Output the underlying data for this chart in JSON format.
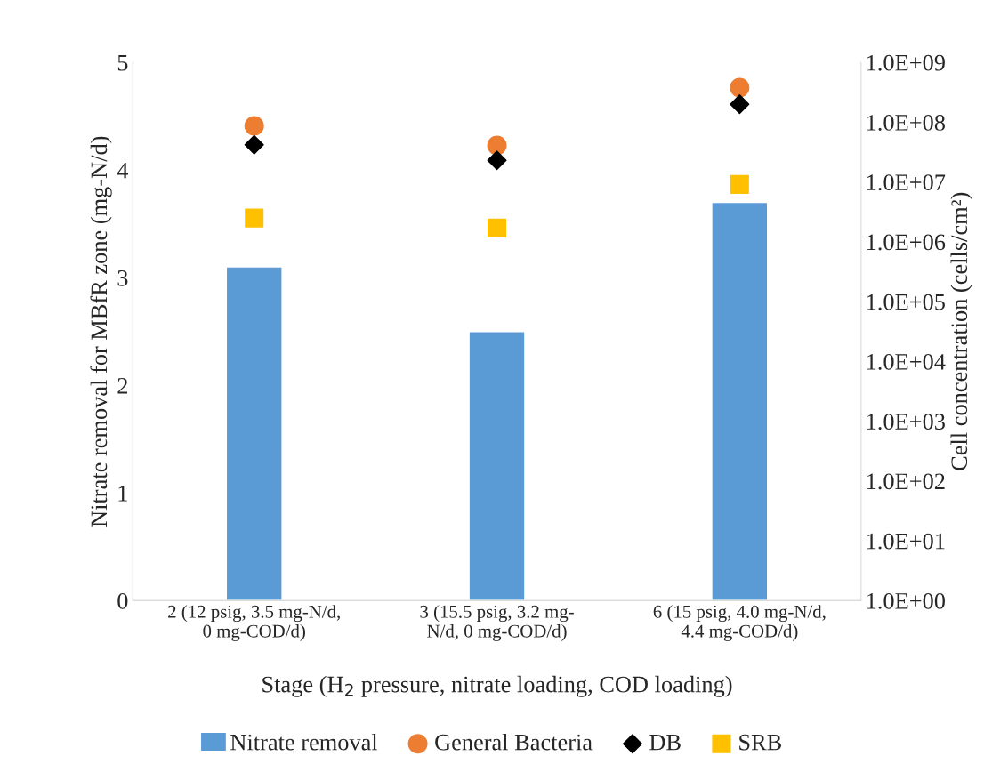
{
  "chart_data": {
    "type": "bar",
    "xlabel": "Stage (H$_{2}$ pressure, nitrate loading, COD loading)",
    "ylabel": "Nitrate removal for MBfR zone (mg-N/d)",
    "y2label": "Cell concentration (cells/cm²)",
    "categories": [
      "2 (12 psig, 3.5 mg-N/d,\n0 mg-COD/d)",
      "3 (15.5 psig, 3.2 mg-\nN/d, 0 mg-COD/d)",
      "6 (15 psig, 4.0 mg-N/d,\n4.4 mg-COD/d)"
    ],
    "series": [
      {
        "name": "Nitrate removal",
        "color": "#5b9bd5",
        "values": [
          3.1,
          2.5,
          3.7
        ]
      },
      {
        "name": "General Bacteria",
        "type": "scatter",
        "axis": "y2",
        "marker": "circle",
        "color": "#ed7d31",
        "values": [
          87000000,
          41000000,
          380000000
        ]
      },
      {
        "name": "DB",
        "type": "scatter",
        "axis": "y2",
        "marker": "diamond",
        "color": "#000000",
        "values": [
          42000000,
          23000000,
          200000000
        ]
      },
      {
        "name": "SRB",
        "type": "scatter",
        "axis": "y2",
        "marker": "square",
        "color": "#ffc000",
        "values": [
          2500000,
          1700000,
          9100000
        ]
      }
    ],
    "ylim": [
      0,
      5
    ],
    "yticks": [
      0,
      1,
      2,
      3,
      4,
      5
    ],
    "log": "y2",
    "y2lim": [
      1,
      1000000000
    ],
    "y2ticks": [
      {
        "value": 1,
        "label": "1.0E+00"
      },
      {
        "value": 10,
        "label": "1.0E+01"
      },
      {
        "value": 100,
        "label": "1.0E+02"
      },
      {
        "value": 1000,
        "label": "1.0E+03"
      },
      {
        "value": 10000,
        "label": "1.0E+04"
      },
      {
        "value": 100000,
        "label": "1.0E+05"
      },
      {
        "value": 1000000,
        "label": "1.0E+06"
      },
      {
        "value": 10000000,
        "label": "1.0E+07"
      },
      {
        "value": 100000000,
        "label": "1.0E+08"
      },
      {
        "value": 1000000000,
        "label": "1.0E+09"
      }
    ],
    "grid": false,
    "legend": "bottom"
  }
}
